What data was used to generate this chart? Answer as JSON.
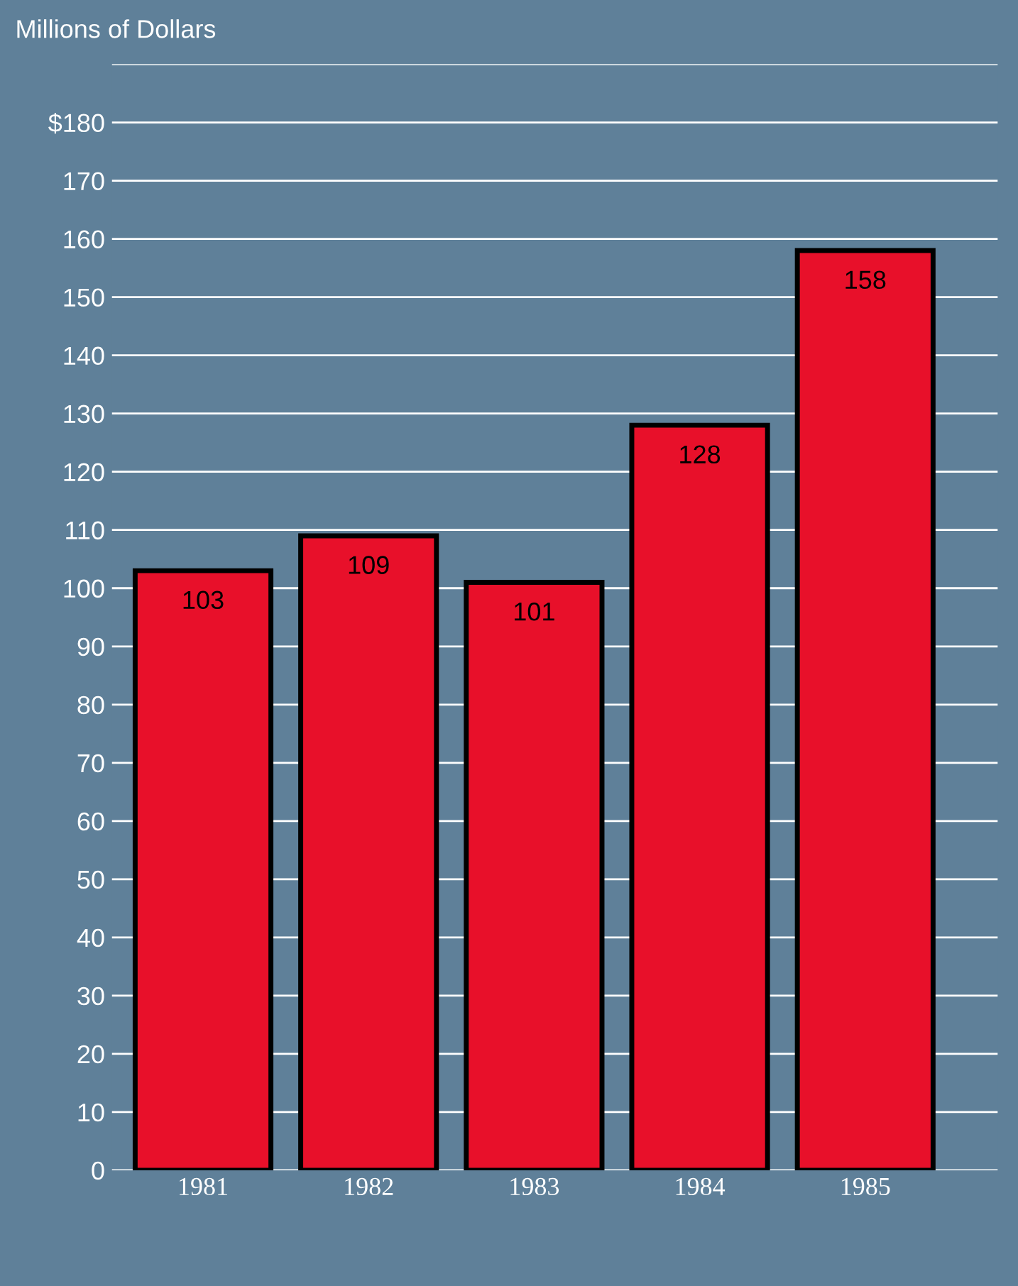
{
  "chart_data": {
    "type": "bar",
    "ylabel": "Millions of Dollars",
    "categories": [
      "1981",
      "1982",
      "1983",
      "1984",
      "1985"
    ],
    "values": [
      103,
      109,
      101,
      128,
      158
    ],
    "color": "#e8102a",
    "data_labels": true,
    "ylim": [
      0,
      190
    ],
    "yticks": [
      0,
      10,
      20,
      30,
      40,
      50,
      60,
      70,
      80,
      90,
      100,
      110,
      120,
      130,
      140,
      150,
      160,
      170,
      {
        "value": 180,
        "label": "$180"
      },
      {
        "value": 190,
        "label": null
      }
    ],
    "grid": "y"
  }
}
